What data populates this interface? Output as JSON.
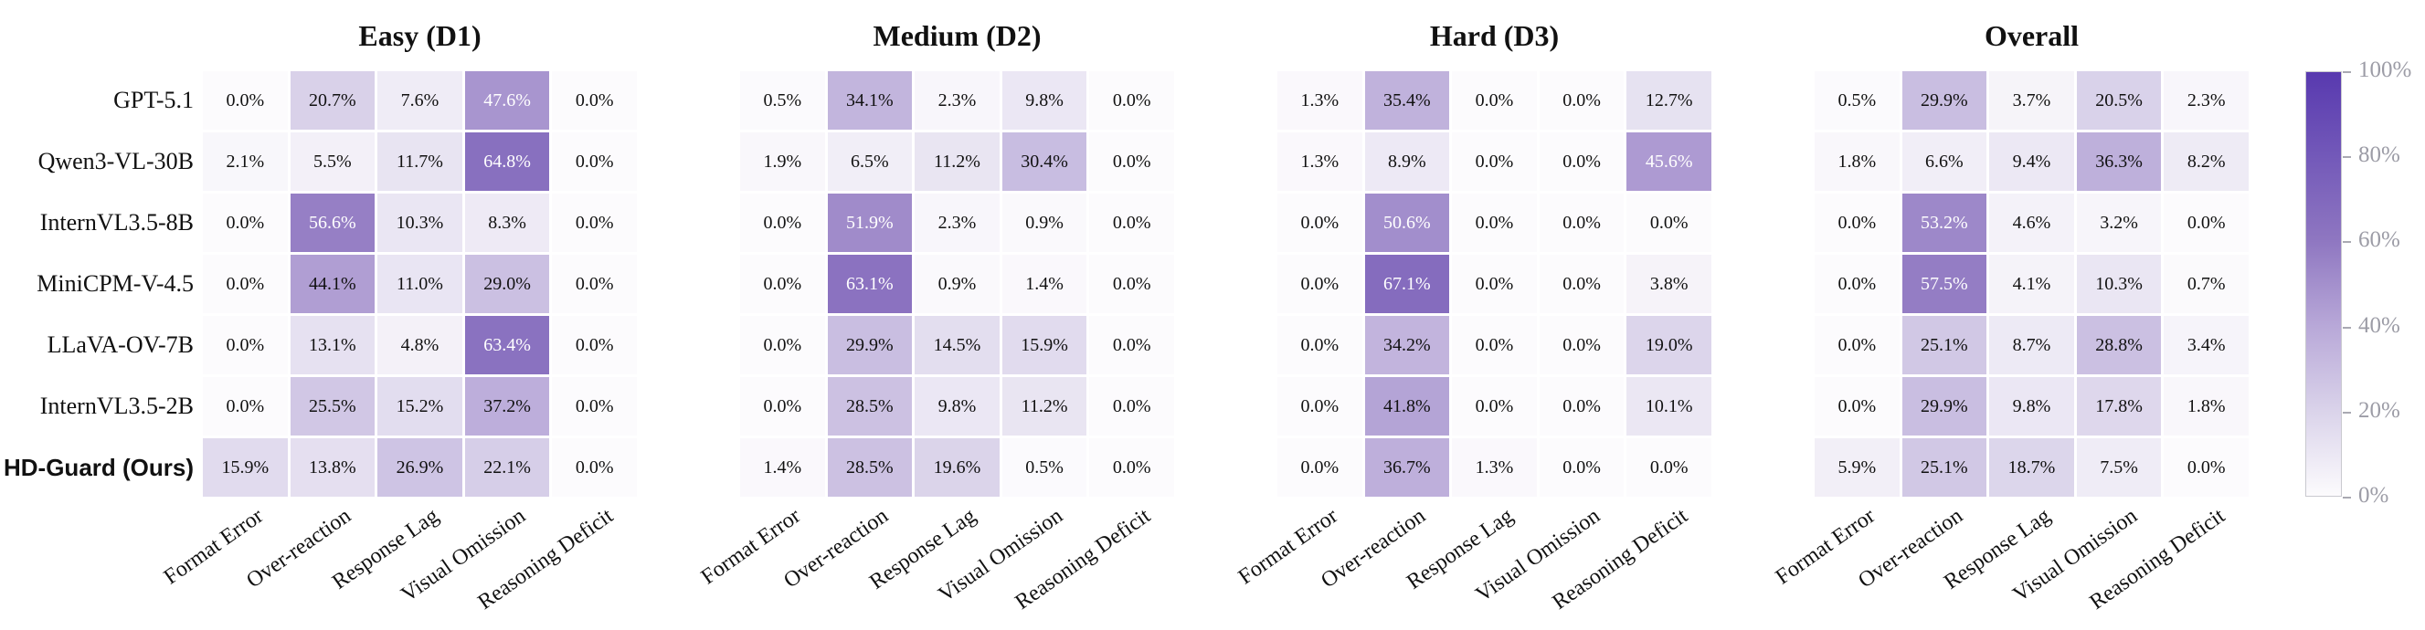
{
  "figure": {
    "background": "#ffffff",
    "text_color": "#111111",
    "tick_label_color": "#9c9ca6"
  },
  "chart_data": {
    "type": "heatmap",
    "rows": [
      {
        "label": "GPT-5.1",
        "bold": false
      },
      {
        "label": "Qwen3-VL-30B",
        "bold": false
      },
      {
        "label": "InternVL3.5-8B",
        "bold": false
      },
      {
        "label": "MiniCPM-V-4.5",
        "bold": false
      },
      {
        "label": "LLaVA-OV-7B",
        "bold": false
      },
      {
        "label": "InternVL3.5-2B",
        "bold": false
      },
      {
        "label": "HD-Guard (Ours)",
        "bold": true
      }
    ],
    "columns": [
      "Format Error",
      "Over-reaction",
      "Response Lag",
      "Visual Omission",
      "Reasoning Deficit"
    ],
    "value_unit": "%",
    "panels": [
      {
        "title": "Easy (D1)",
        "values": [
          [
            0.0,
            20.7,
            7.6,
            47.6,
            0.0
          ],
          [
            2.1,
            5.5,
            11.7,
            64.8,
            0.0
          ],
          [
            0.0,
            56.6,
            10.3,
            8.3,
            0.0
          ],
          [
            0.0,
            44.1,
            11.0,
            29.0,
            0.0
          ],
          [
            0.0,
            13.1,
            4.8,
            63.4,
            0.0
          ],
          [
            0.0,
            25.5,
            15.2,
            37.2,
            0.0
          ],
          [
            15.9,
            13.8,
            26.9,
            22.1,
            0.0
          ]
        ]
      },
      {
        "title": "Medium (D2)",
        "values": [
          [
            0.5,
            34.1,
            2.3,
            9.8,
            0.0
          ],
          [
            1.9,
            6.5,
            11.2,
            30.4,
            0.0
          ],
          [
            0.0,
            51.9,
            2.3,
            0.9,
            0.0
          ],
          [
            0.0,
            63.1,
            0.9,
            1.4,
            0.0
          ],
          [
            0.0,
            29.9,
            14.5,
            15.9,
            0.0
          ],
          [
            0.0,
            28.5,
            9.8,
            11.2,
            0.0
          ],
          [
            1.4,
            28.5,
            19.6,
            0.5,
            0.0
          ]
        ]
      },
      {
        "title": "Hard (D3)",
        "values": [
          [
            1.3,
            35.4,
            0.0,
            0.0,
            12.7
          ],
          [
            1.3,
            8.9,
            0.0,
            0.0,
            45.6
          ],
          [
            0.0,
            50.6,
            0.0,
            0.0,
            0.0
          ],
          [
            0.0,
            67.1,
            0.0,
            0.0,
            3.8
          ],
          [
            0.0,
            34.2,
            0.0,
            0.0,
            19.0
          ],
          [
            0.0,
            41.8,
            0.0,
            0.0,
            10.1
          ],
          [
            0.0,
            36.7,
            1.3,
            0.0,
            0.0
          ]
        ]
      },
      {
        "title": "Overall",
        "values": [
          [
            0.5,
            29.9,
            3.7,
            20.5,
            2.3
          ],
          [
            1.8,
            6.6,
            9.4,
            36.3,
            8.2
          ],
          [
            0.0,
            53.2,
            4.6,
            3.2,
            0.0
          ],
          [
            0.0,
            57.5,
            4.1,
            10.3,
            0.7
          ],
          [
            0.0,
            25.1,
            8.7,
            28.8,
            3.4
          ],
          [
            0.0,
            29.9,
            9.8,
            17.8,
            1.8
          ],
          [
            5.9,
            25.1,
            18.7,
            7.5,
            0.0
          ]
        ]
      }
    ],
    "colormap_stops": [
      [
        0.0,
        "#fcfbfd"
      ],
      [
        0.2,
        "#dad3ea"
      ],
      [
        0.4,
        "#b8a8d8"
      ],
      [
        0.6,
        "#8f77c1"
      ],
      [
        0.8,
        "#7359b9"
      ],
      [
        1.0,
        "#5839af"
      ]
    ],
    "white_text_threshold": 45,
    "colorbar": {
      "min": 0,
      "max": 100,
      "ticks": [
        "0%",
        "20%",
        "40%",
        "60%",
        "80%",
        "100%"
      ],
      "position": "right"
    },
    "grid": false,
    "xlabel": "",
    "ylabel": ""
  }
}
